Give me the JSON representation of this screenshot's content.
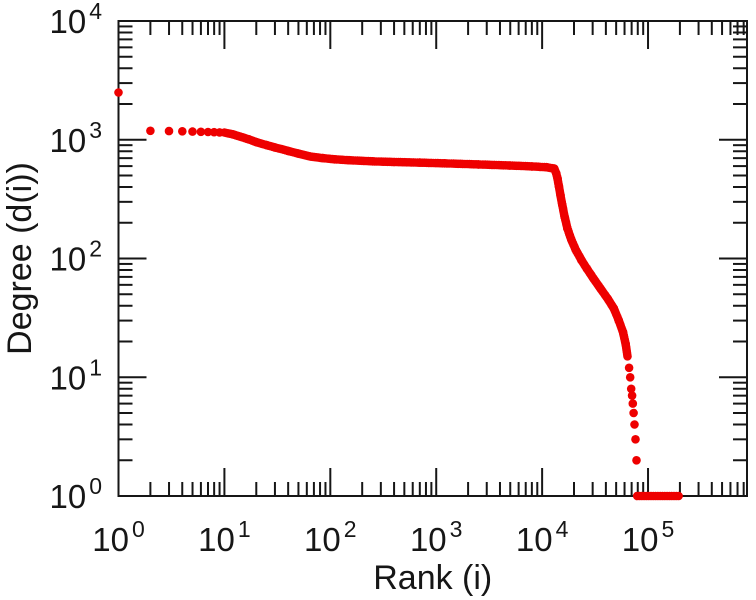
{
  "figure": {
    "background": "#ffffff",
    "description": "Log-log scatter plot of node degree versus rank"
  },
  "chart_data": {
    "type": "scatter",
    "title": "",
    "xlabel": "Rank (i)",
    "ylabel": "Degree (d(i))",
    "x_scale": "log",
    "y_scale": "log",
    "xlim": [
      1,
      860000
    ],
    "ylim": [
      1,
      10000
    ],
    "grid": false,
    "legend": "none",
    "tick_label_base": "10",
    "x_tick_exponents": [
      0,
      1,
      2,
      3,
      4,
      5
    ],
    "y_tick_exponents": [
      0,
      1,
      2,
      3,
      4
    ],
    "marker_color": "#ee0000",
    "axis_color": "#161616",
    "series": [
      {
        "name": "degree-vs-rank",
        "marker": "circle",
        "isolated_points": [
          [
            1,
            2500
          ],
          [
            2,
            1190
          ],
          [
            3,
            1183
          ],
          [
            4,
            1177
          ],
          [
            5,
            1172
          ],
          [
            6,
            1167
          ],
          [
            7,
            1162
          ],
          [
            8,
            1158
          ],
          [
            9,
            1154
          ]
        ],
        "band_anchors": [
          [
            10,
            1150
          ],
          [
            12,
            1112
          ],
          [
            14,
            1065
          ],
          [
            17,
            1008
          ],
          [
            20,
            955
          ],
          [
            25,
            902
          ],
          [
            30,
            862
          ],
          [
            40,
            806
          ],
          [
            50,
            764
          ],
          [
            65,
            722
          ],
          [
            85,
            700
          ],
          [
            110,
            685
          ],
          [
            150,
            672
          ],
          [
            250,
            658
          ],
          [
            400,
            650
          ],
          [
            700,
            642
          ],
          [
            1200,
            633
          ],
          [
            2500,
            620
          ],
          [
            5000,
            607
          ],
          [
            8000,
            597
          ],
          [
            11000,
            587
          ],
          [
            13000,
            572
          ],
          [
            13600,
            520
          ],
          [
            14000,
            468
          ],
          [
            14400,
            405
          ],
          [
            14900,
            340
          ],
          [
            15500,
            282
          ],
          [
            16300,
            225
          ],
          [
            17300,
            180
          ],
          [
            18800,
            145
          ],
          [
            20800,
            118
          ],
          [
            23500,
            97
          ],
          [
            26500,
            82
          ],
          [
            30500,
            68
          ],
          [
            35500,
            56
          ],
          [
            41500,
            46
          ],
          [
            47500,
            38
          ],
          [
            53000,
            30
          ],
          [
            58000,
            24
          ],
          [
            61500,
            19
          ],
          [
            64000,
            15
          ]
        ],
        "tail_points": [
          [
            66200,
            12
          ],
          [
            67800,
            10
          ],
          [
            69300,
            8
          ],
          [
            70800,
            7
          ],
          [
            71800,
            6
          ],
          [
            73000,
            5
          ],
          [
            74500,
            4
          ],
          [
            76200,
            3
          ],
          [
            77800,
            2
          ]
        ],
        "degree_one_run": [
          79000,
          195000
        ]
      }
    ]
  }
}
